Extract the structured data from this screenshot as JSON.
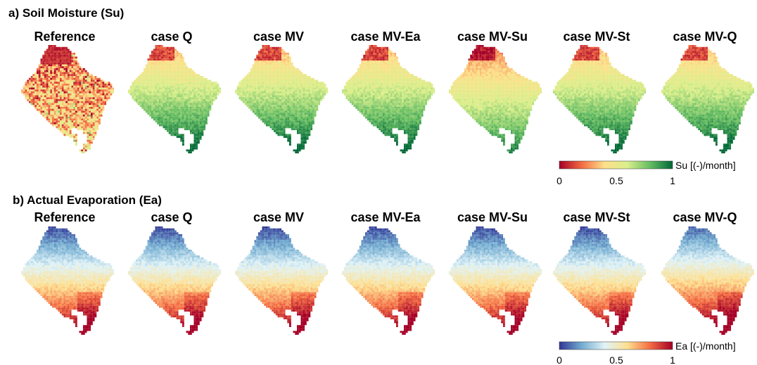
{
  "chart_data": [
    {
      "type": "heatmap",
      "section_title": "a) Soil Moisture (Su)",
      "panel_titles": [
        "Reference",
        "case Q",
        "case MV",
        "case MV-Ea",
        "case MV-Su",
        "case MV-St",
        "case MV-Q"
      ],
      "variable": "Su",
      "colorbar": {
        "label": "Su [(-)/month]",
        "range": [
          0,
          1
        ],
        "ticks": [
          "0",
          "0.5",
          "1"
        ],
        "colormap": "red-yellow-green",
        "colors": [
          "#a50026",
          "#f46d43",
          "#fee08b",
          "#d9ef8b",
          "#66bd63",
          "#006837"
        ]
      },
      "colormap_meaning": "low values red in the north, high values green in the south"
    },
    {
      "type": "heatmap",
      "section_title": "b) Actual Evaporation (Ea)",
      "panel_titles": [
        "Reference",
        "case Q",
        "case MV",
        "case MV-Ea",
        "case MV-Su",
        "case MV-St",
        "case MV-Q"
      ],
      "variable": "Ea",
      "colorbar": {
        "label": "Ea [(-)/month]",
        "range": [
          0,
          1
        ],
        "ticks": [
          "0",
          "0.5",
          "1"
        ],
        "colormap": "blue-yellow-red",
        "colors": [
          "#313695",
          "#74add1",
          "#e0f3f8",
          "#fee090",
          "#f46d43",
          "#a50026"
        ]
      },
      "colormap_meaning": "low values blue in the north, high values red in the south"
    }
  ]
}
